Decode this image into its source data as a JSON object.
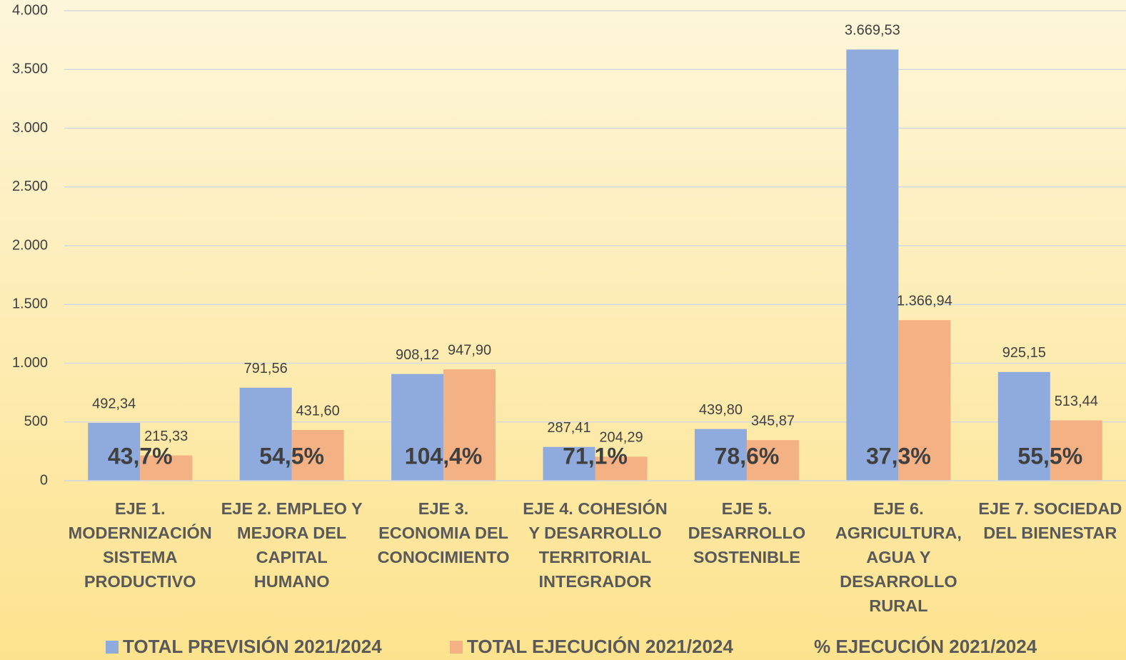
{
  "chart_data": {
    "type": "bar",
    "categories": [
      "EJE 1. MODERNIZACIÓN SISTEMA PRODUCTIVO",
      "EJE 2. EMPLEO Y MEJORA DEL CAPITAL HUMANO",
      "EJE 3. ECONOMIA DEL CONOCIMIENTO",
      "EJE 4. COHESIÓN Y DESARROLLO TERRITORIAL INTEGRADOR",
      "EJE 5. DESARROLLO SOSTENIBLE",
      "EJE 6. AGRICULTURA, AGUA Y DESARROLLO RURAL",
      "EJE 7. SOCIEDAD DEL BIENESTAR"
    ],
    "series": [
      {
        "name": "TOTAL PREVISIÓN 2021/2024",
        "color": "#8faadc",
        "values": [
          492.34,
          791.56,
          908.12,
          287.41,
          439.8,
          3669.53,
          925.15
        ],
        "value_labels": [
          "492,34",
          "791,56",
          "908,12",
          "287,41",
          "439,80",
          "3.669,53",
          "925,15"
        ]
      },
      {
        "name": "TOTAL EJECUCIÓN 2021/2024",
        "color": "#f4b183",
        "values": [
          215.33,
          431.6,
          947.9,
          204.29,
          345.87,
          1366.94,
          513.44
        ],
        "value_labels": [
          "215,33",
          "431,60",
          "947,90",
          "204,29",
          "345,87",
          "1.366,94",
          "513,44"
        ]
      },
      {
        "name": "% EJECUCIÓN 2021/2024",
        "values": [
          43.7,
          54.5,
          104.4,
          71.1,
          78.6,
          37.3,
          55.5
        ],
        "value_labels": [
          "43,7%",
          "54,5%",
          "104,4%",
          "71,1%",
          "78,6%",
          "37,3%",
          "55,5%"
        ]
      }
    ],
    "ylim": [
      0,
      4000
    ],
    "yticks": [
      0,
      500,
      {
        "value": 1000,
        "label": "1.000"
      },
      {
        "value": 1500,
        "label": "1.500"
      },
      {
        "value": 2000,
        "label": "2.000"
      },
      {
        "value": 2500,
        "label": "2.500"
      },
      {
        "value": 3000,
        "label": "3.000"
      },
      {
        "value": 3500,
        "label": "3.500"
      },
      {
        "value": 4000,
        "label": "4.000"
      }
    ],
    "grid": true
  }
}
